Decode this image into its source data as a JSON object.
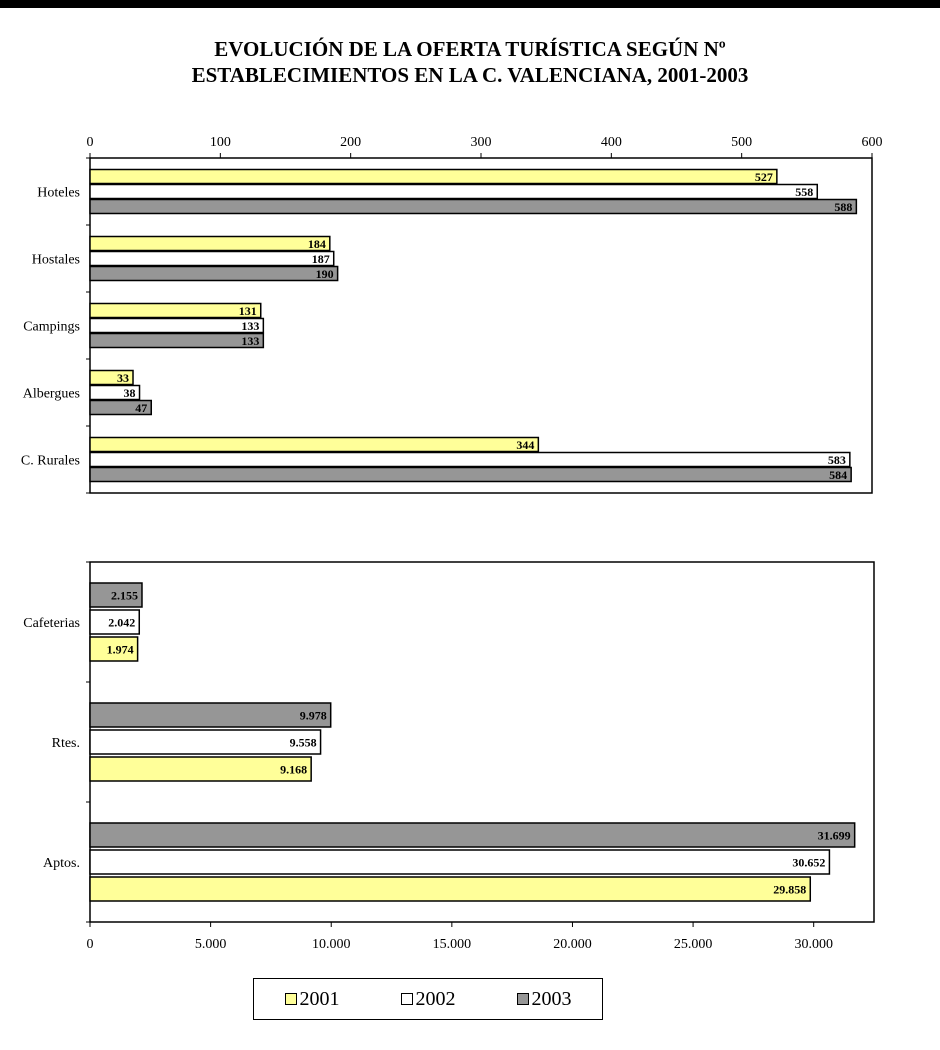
{
  "title_line1": "EVOLUCIÓN DE LA OFERTA TURÍSTICA SEGÚN Nº",
  "title_line2": "ESTABLECIMIENTOS EN LA C. VALENCIANA, 2001-2003",
  "colors": {
    "y2001": "#ffff99",
    "y2002": "#ffffff",
    "y2003": "#969696"
  },
  "legend": [
    {
      "name": "2001",
      "color": "#ffff99"
    },
    {
      "name": "2002",
      "color": "#ffffff"
    },
    {
      "name": "2003",
      "color": "#969696"
    }
  ],
  "chart_data": [
    {
      "type": "bar",
      "orientation": "horizontal",
      "categories": [
        "Hoteles",
        "Hostales",
        "Campings",
        "Albergues",
        "C. Rurales"
      ],
      "series": [
        {
          "name": "2001",
          "values": [
            527,
            184,
            131,
            33,
            344
          ],
          "labels": [
            "527",
            "184",
            "131",
            "33",
            "344"
          ]
        },
        {
          "name": "2002",
          "values": [
            558,
            187,
            133,
            38,
            583
          ],
          "labels": [
            "558",
            "187",
            "133",
            "38",
            "583"
          ]
        },
        {
          "name": "2003",
          "values": [
            588,
            190,
            133,
            47,
            584
          ],
          "labels": [
            "588",
            "190",
            "133",
            "47",
            "584"
          ]
        }
      ],
      "xlim": [
        0,
        600
      ],
      "xticks": [
        0,
        100,
        200,
        300,
        400,
        500,
        600
      ],
      "xtick_labels": [
        "0",
        "100",
        "200",
        "300",
        "400",
        "500",
        "600"
      ],
      "xaxis_position": "top",
      "grid": false
    },
    {
      "type": "bar",
      "orientation": "horizontal",
      "categories": [
        "Cafeterias",
        "Rtes.",
        "Aptos."
      ],
      "series": [
        {
          "name": "2001",
          "values": [
            1974,
            9168,
            29858
          ],
          "labels": [
            "1.974",
            "9.168",
            "29.858"
          ]
        },
        {
          "name": "2002",
          "values": [
            2042,
            9558,
            30652
          ],
          "labels": [
            "2.042",
            "9.558",
            "30.652"
          ]
        },
        {
          "name": "2003",
          "values": [
            2155,
            9978,
            31699
          ],
          "labels": [
            "2.155",
            "9.978",
            "31.699"
          ]
        }
      ],
      "xlim": [
        0,
        32500
      ],
      "xticks": [
        0,
        5000,
        10000,
        15000,
        20000,
        25000,
        30000
      ],
      "xtick_labels": [
        "0",
        "5.000",
        "10.000",
        "15.000",
        "20.000",
        "25.000",
        "30.000"
      ],
      "xaxis_position": "bottom",
      "grid": false
    }
  ]
}
